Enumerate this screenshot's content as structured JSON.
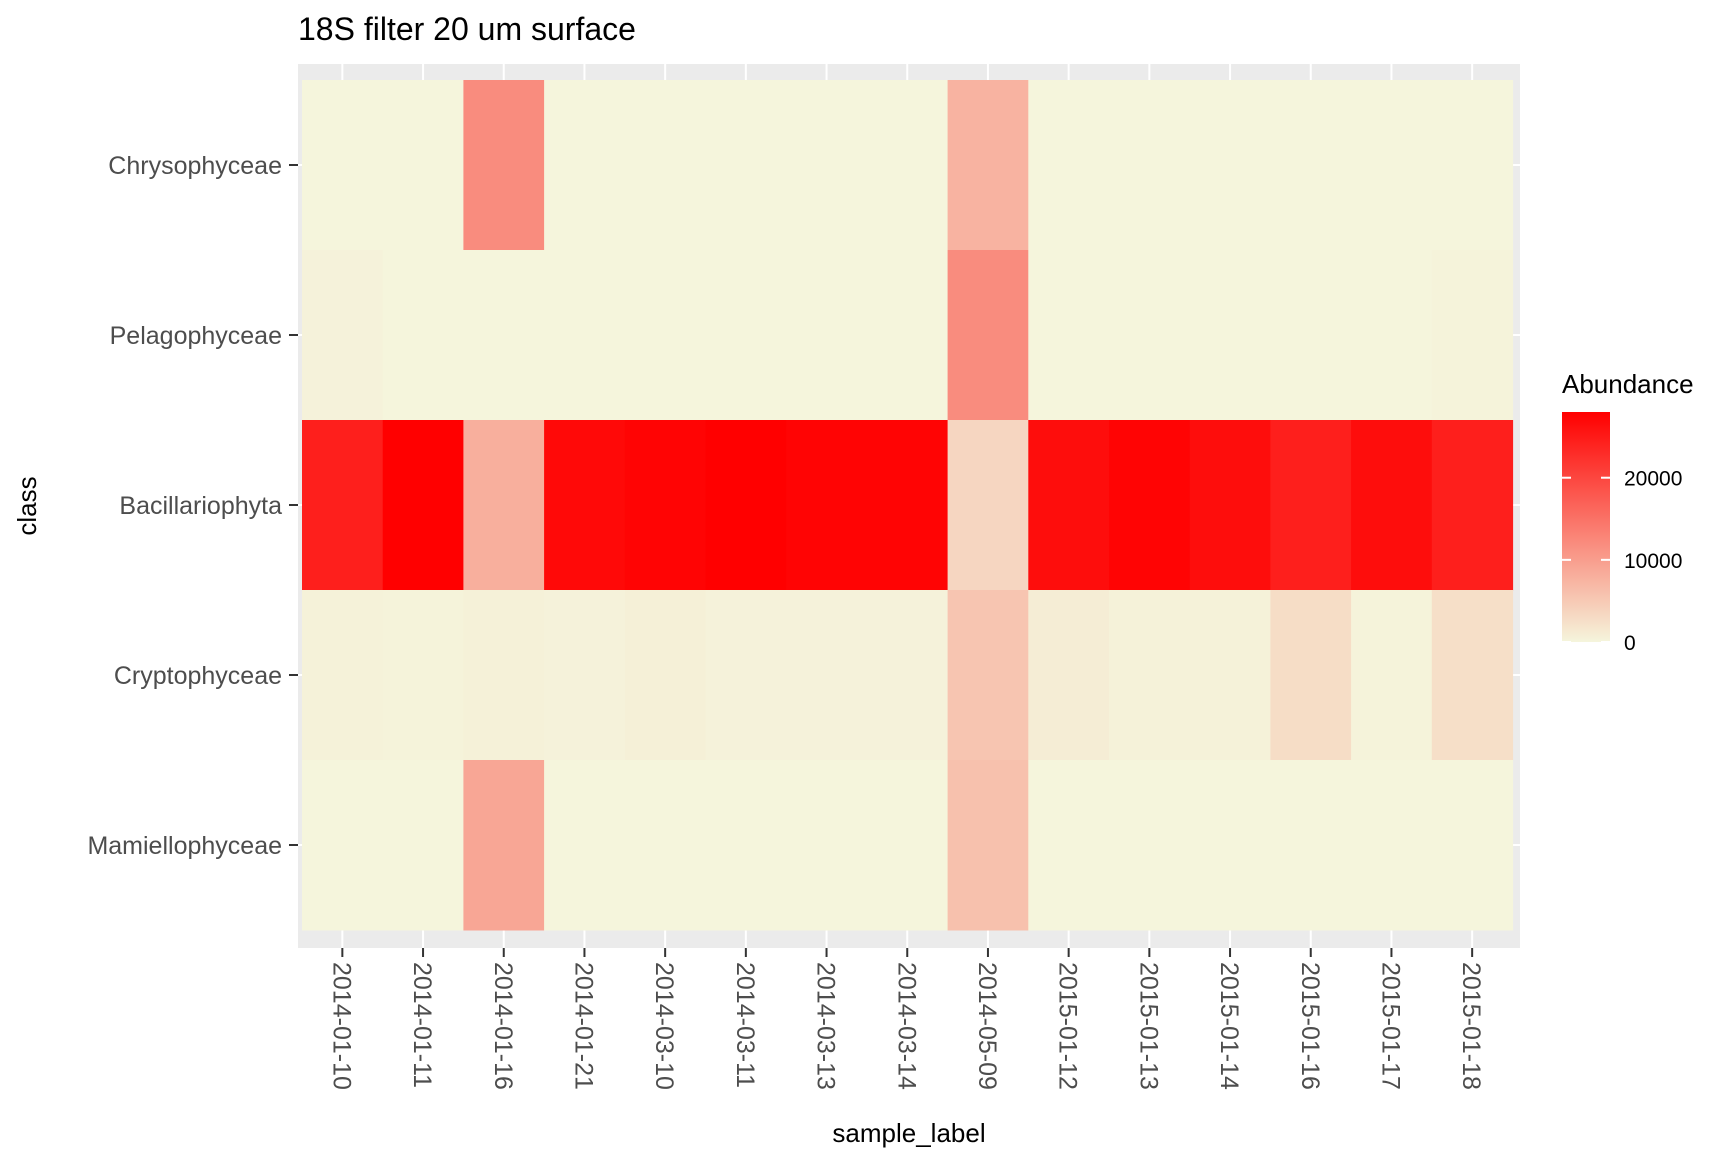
{
  "chart_data": {
    "type": "heatmap",
    "title": "18S filter 20 um surface",
    "xlabel": "sample_label",
    "ylabel": "class",
    "x": [
      "2014-01-10",
      "2014-01-11",
      "2014-01-16",
      "2014-01-21",
      "2014-03-10",
      "2014-03-11",
      "2014-03-13",
      "2014-03-14",
      "2014-05-09",
      "2015-01-12",
      "2015-01-13",
      "2015-01-14",
      "2015-01-16",
      "2015-01-17",
      "2015-01-18"
    ],
    "y": [
      "Chrysophyceae",
      "Pelagophyceae",
      "Bacillariophyta",
      "Cryptophyceae",
      "Mamiellophyceae"
    ],
    "values": [
      [
        0,
        0,
        12000,
        0,
        0,
        0,
        0,
        0,
        7500,
        0,
        0,
        0,
        0,
        0,
        0
      ],
      [
        300,
        0,
        0,
        0,
        0,
        0,
        0,
        0,
        12000,
        0,
        0,
        0,
        0,
        0,
        200
      ],
      [
        24500,
        28000,
        8000,
        27000,
        27500,
        28000,
        27500,
        27500,
        3500,
        26500,
        27500,
        26500,
        24500,
        26500,
        24500
      ],
      [
        400,
        200,
        500,
        300,
        600,
        300,
        300,
        300,
        5500,
        900,
        400,
        400,
        2800,
        200,
        2500
      ],
      [
        0,
        0,
        9000,
        0,
        0,
        0,
        0,
        0,
        6000,
        0,
        0,
        0,
        0,
        0,
        0
      ]
    ],
    "colorscale": {
      "low": "#f5f5dc",
      "high": "#ff0000",
      "min": 0,
      "max": 28000
    },
    "legend": {
      "title": "Abundance",
      "ticks": [
        0,
        10000,
        20000
      ],
      "tick_labels": [
        "0",
        "10000",
        "20000"
      ],
      "position": "right"
    },
    "panel_background": "#ebebeb",
    "grid": true
  }
}
